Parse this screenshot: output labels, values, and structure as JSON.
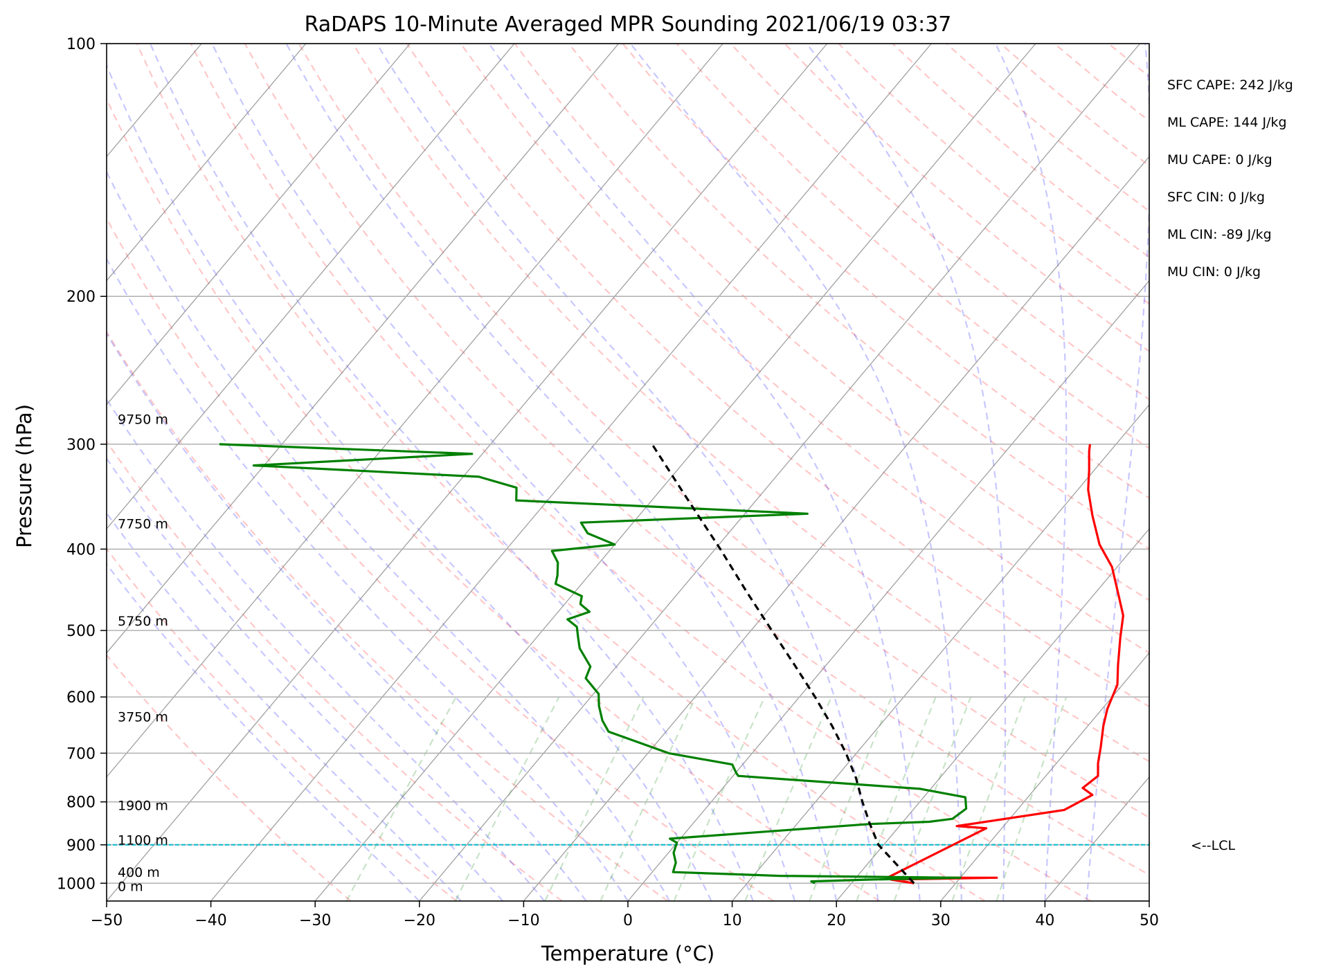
{
  "chart_data": {
    "type": "line",
    "title": "RaDAPS 10-Minute Averaged MPR Sounding 2021/06/19 03:37",
    "xlabel": "Temperature (°C)",
    "ylabel": "Pressure (hPa)",
    "xlim": [
      -50,
      50
    ],
    "ylim": [
      1050,
      100
    ],
    "y_scale": "log",
    "skew_t": true,
    "grid": true,
    "x_ticks": [
      -50,
      -40,
      -30,
      -20,
      -10,
      0,
      10,
      20,
      30,
      40,
      50
    ],
    "x_tick_labels": [
      "−50",
      "−40",
      "−30",
      "−20",
      "−10",
      "0",
      "10",
      "20",
      "30",
      "40",
      "50"
    ],
    "y_ticks": [
      100,
      200,
      300,
      400,
      500,
      600,
      700,
      800,
      900,
      1000
    ],
    "y_tick_labels": [
      "100",
      "200",
      "300",
      "400",
      "500",
      "600",
      "700",
      "800",
      "900",
      "1000"
    ],
    "colors": {
      "temperature": "#ff0000",
      "dewpoint": "#008000",
      "parcel": "#000000",
      "lcl": "#17becf",
      "dry_adiabats": "#ff0000",
      "moist_adiabats": "#0000ff",
      "mixing_ratio": "#008000",
      "isotherms": "#808080"
    },
    "series": [
      {
        "key": "temperature",
        "points": [
          [
            26.0,
            1000
          ],
          [
            23.5,
            990
          ],
          [
            33.5,
            985
          ],
          [
            23.0,
            985
          ],
          [
            28.5,
            860
          ],
          [
            25.5,
            855
          ],
          [
            34.5,
            818
          ],
          [
            36.0,
            785
          ],
          [
            34.5,
            770
          ],
          [
            35.0,
            745
          ],
          [
            34.0,
            720
          ],
          [
            33.5,
            705
          ],
          [
            33.0,
            690
          ],
          [
            31.5,
            650
          ],
          [
            30.5,
            620
          ],
          [
            29.5,
            580
          ],
          [
            28.0,
            550
          ],
          [
            26.0,
            510
          ],
          [
            24.5,
            480
          ],
          [
            22.5,
            455
          ],
          [
            19.5,
            420
          ],
          [
            16.5,
            395
          ],
          [
            13.5,
            365
          ],
          [
            11.0,
            340
          ],
          [
            9.5,
            322
          ],
          [
            8.0,
            306
          ],
          [
            7.5,
            300
          ]
        ]
      },
      {
        "key": "dewpoint",
        "points": [
          [
            16.5,
            1000
          ],
          [
            16.0,
            995
          ],
          [
            21.5,
            990
          ],
          [
            30.0,
            985
          ],
          [
            12.5,
            980
          ],
          [
            7.5,
            975
          ],
          [
            2.0,
            970
          ],
          [
            1.5,
            945
          ],
          [
            0.5,
            920
          ],
          [
            0.0,
            895
          ],
          [
            -1.0,
            885
          ],
          [
            17.0,
            850
          ],
          [
            22.5,
            845
          ],
          [
            24.5,
            838
          ],
          [
            25.0,
            815
          ],
          [
            24.0,
            790
          ],
          [
            19.0,
            772
          ],
          [
            0.5,
            745
          ],
          [
            0.0,
            738
          ],
          [
            -1.0,
            722
          ],
          [
            -8.0,
            700
          ],
          [
            -15.5,
            660
          ],
          [
            -17.0,
            640
          ],
          [
            -18.5,
            615
          ],
          [
            -19.5,
            595
          ],
          [
            -22.0,
            570
          ],
          [
            -22.5,
            552
          ],
          [
            -25.0,
            525
          ],
          [
            -26.0,
            510
          ],
          [
            -27.0,
            495
          ],
          [
            -28.5,
            485
          ],
          [
            -27.0,
            475
          ],
          [
            -28.5,
            465
          ],
          [
            -29.0,
            455
          ],
          [
            -32.5,
            440
          ],
          [
            -33.0,
            430
          ],
          [
            -34.0,
            415
          ],
          [
            -35.5,
            402
          ],
          [
            -30.0,
            395
          ],
          [
            -33.5,
            383
          ],
          [
            -35.0,
            372
          ],
          [
            -14.0,
            363
          ],
          [
            -43.0,
            350
          ],
          [
            -44.0,
            338
          ],
          [
            -48.5,
            328
          ],
          [
            -71.0,
            318
          ],
          [
            -51.0,
            308
          ],
          [
            -76.0,
            300
          ]
        ]
      },
      {
        "key": "parcel",
        "points": [
          [
            26.0,
            1000
          ],
          [
            19.5,
            900
          ],
          [
            17.0,
            850
          ],
          [
            14.5,
            800
          ],
          [
            12.0,
            750
          ],
          [
            9.0,
            700
          ],
          [
            5.5,
            650
          ],
          [
            1.5,
            600
          ],
          [
            -3.0,
            550
          ],
          [
            -8.0,
            500
          ],
          [
            -13.5,
            450
          ],
          [
            -19.5,
            400
          ],
          [
            -26.5,
            350
          ],
          [
            -34.5,
            300
          ]
        ]
      }
    ],
    "lcl_pressure": 900,
    "lcl_label": "<--LCL",
    "height_labels": [
      {
        "text": "9750 m",
        "pressure": 280
      },
      {
        "text": "7750 m",
        "pressure": 373
      },
      {
        "text": "5750 m",
        "pressure": 487
      },
      {
        "text": "3750 m",
        "pressure": 633
      },
      {
        "text": "1900 m",
        "pressure": 807
      },
      {
        "text": "1100 m",
        "pressure": 888
      },
      {
        "text": "400 m",
        "pressure": 970
      },
      {
        "text": "0 m",
        "pressure": 1008
      }
    ],
    "stats": [
      "SFC CAPE: 242 J/kg",
      "ML CAPE: 144 J/kg",
      "MU CAPE: 0 J/kg",
      "SFC CIN: 0 J/kg",
      "ML CIN: -89 J/kg",
      "MU CIN: 0 J/kg"
    ]
  }
}
